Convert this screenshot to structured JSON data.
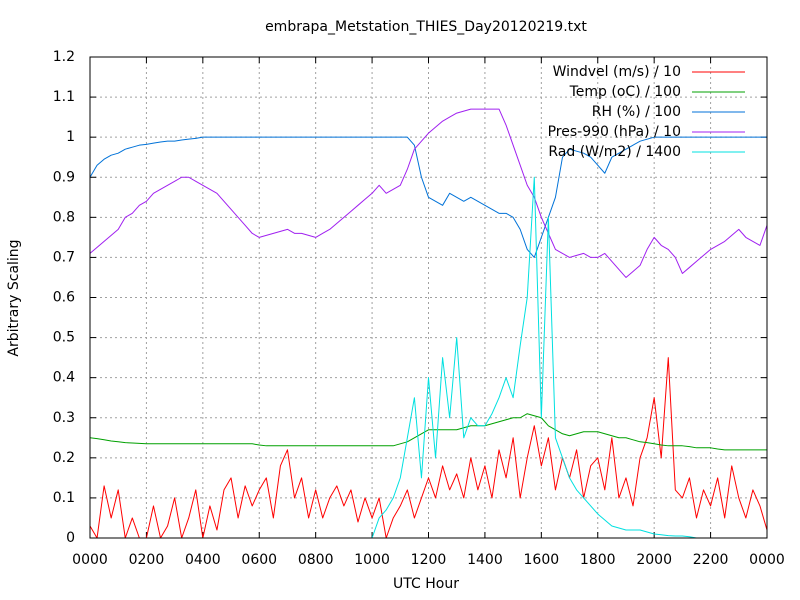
{
  "chart_data": {
    "type": "line",
    "title": "embrapa_Metstation_THIES_Day20120219.txt",
    "xlabel": "UTC Hour",
    "ylabel": "Arbitrary Scaling",
    "xlim": [
      0,
      24
    ],
    "xticks": [
      {
        "value": 0,
        "label": "0000"
      },
      {
        "value": 2,
        "label": "0200"
      },
      {
        "value": 4,
        "label": "0400"
      },
      {
        "value": 6,
        "label": "0600"
      },
      {
        "value": 8,
        "label": "0800"
      },
      {
        "value": 10,
        "label": "1000"
      },
      {
        "value": 12,
        "label": "1200"
      },
      {
        "value": 14,
        "label": "1400"
      },
      {
        "value": 16,
        "label": "1600"
      },
      {
        "value": 18,
        "label": "1800"
      },
      {
        "value": 20,
        "label": "2000"
      },
      {
        "value": 22,
        "label": "2200"
      },
      {
        "value": 24,
        "label": "0000"
      }
    ],
    "ylim": [
      0,
      1.2
    ],
    "yticks": [
      0,
      0.1,
      0.2,
      0.3,
      0.4,
      0.5,
      0.6,
      0.7,
      0.8,
      0.9,
      1,
      1.1,
      1.2
    ],
    "grid": true,
    "legend": "top-right",
    "x": [
      0,
      0.25,
      0.5,
      0.75,
      1,
      1.25,
      1.5,
      1.75,
      2,
      2.25,
      2.5,
      2.75,
      3,
      3.25,
      3.5,
      3.75,
      4,
      4.25,
      4.5,
      4.75,
      5,
      5.25,
      5.5,
      5.75,
      6,
      6.25,
      6.5,
      6.75,
      7,
      7.25,
      7.5,
      7.75,
      8,
      8.25,
      8.5,
      8.75,
      9,
      9.25,
      9.5,
      9.75,
      10,
      10.25,
      10.5,
      10.75,
      11,
      11.25,
      11.5,
      11.75,
      12,
      12.25,
      12.5,
      12.75,
      13,
      13.25,
      13.5,
      13.75,
      14,
      14.25,
      14.5,
      14.75,
      15,
      15.25,
      15.5,
      15.75,
      16,
      16.25,
      16.5,
      16.75,
      17,
      17.25,
      17.5,
      17.75,
      18,
      18.25,
      18.5,
      18.75,
      19,
      19.25,
      19.5,
      19.75,
      20,
      20.25,
      20.5,
      20.75,
      21,
      21.25,
      21.5,
      21.75,
      22,
      22.25,
      22.5,
      22.75,
      23,
      23.25,
      23.5,
      23.75,
      24
    ],
    "series": [
      {
        "name": "Windvel (m/s) / 10",
        "color": "#ff0000",
        "values": [
          0.03,
          0,
          0.13,
          0.05,
          0.12,
          0,
          0.05,
          0,
          0,
          0.08,
          0,
          0.03,
          0.1,
          0,
          0.05,
          0.12,
          0,
          0.08,
          0.02,
          0.12,
          0.15,
          0.05,
          0.13,
          0.08,
          0.12,
          0.15,
          0.05,
          0.18,
          0.22,
          0.1,
          0.15,
          0.05,
          0.12,
          0.05,
          0.1,
          0.13,
          0.08,
          0.12,
          0.04,
          0.1,
          0.05,
          0.1,
          0,
          0.05,
          0.08,
          0.12,
          0.05,
          0.1,
          0.15,
          0.1,
          0.18,
          0.12,
          0.16,
          0.1,
          0.2,
          0.12,
          0.18,
          0.1,
          0.22,
          0.15,
          0.25,
          0.1,
          0.2,
          0.28,
          0.18,
          0.25,
          0.12,
          0.2,
          0.15,
          0.22,
          0.1,
          0.18,
          0.2,
          0.12,
          0.25,
          0.1,
          0.15,
          0.08,
          0.2,
          0.25,
          0.35,
          0.2,
          0.45,
          0.12,
          0.1,
          0.15,
          0.05,
          0.12,
          0.08,
          0.15,
          0.05,
          0.18,
          0.1,
          0.05,
          0.12,
          0.08,
          0.02
        ]
      },
      {
        "name": "Temp (oC) / 100",
        "color": "#00a000",
        "values": [
          0.25,
          0.248,
          0.245,
          0.242,
          0.24,
          0.238,
          0.237,
          0.236,
          0.235,
          0.235,
          0.235,
          0.235,
          0.235,
          0.235,
          0.235,
          0.235,
          0.235,
          0.235,
          0.235,
          0.235,
          0.235,
          0.235,
          0.235,
          0.235,
          0.232,
          0.23,
          0.23,
          0.23,
          0.23,
          0.23,
          0.23,
          0.23,
          0.23,
          0.23,
          0.23,
          0.23,
          0.23,
          0.23,
          0.23,
          0.23,
          0.23,
          0.23,
          0.23,
          0.23,
          0.235,
          0.24,
          0.25,
          0.26,
          0.27,
          0.27,
          0.27,
          0.27,
          0.27,
          0.275,
          0.28,
          0.28,
          0.28,
          0.285,
          0.29,
          0.295,
          0.3,
          0.3,
          0.31,
          0.305,
          0.3,
          0.28,
          0.27,
          0.26,
          0.255,
          0.26,
          0.265,
          0.265,
          0.265,
          0.26,
          0.255,
          0.25,
          0.25,
          0.245,
          0.24,
          0.238,
          0.235,
          0.232,
          0.23,
          0.23,
          0.23,
          0.228,
          0.225,
          0.225,
          0.225,
          0.222,
          0.22,
          0.22,
          0.22,
          0.22,
          0.22,
          0.22,
          0.22
        ]
      },
      {
        "name": "RH (%) / 100",
        "color": "#0072d8",
        "values": [
          0.9,
          0.93,
          0.945,
          0.955,
          0.96,
          0.97,
          0.975,
          0.98,
          0.982,
          0.985,
          0.988,
          0.99,
          0.99,
          0.993,
          0.995,
          0.997,
          1,
          1,
          1,
          1,
          1,
          1,
          1,
          1,
          1,
          1,
          1,
          1,
          1,
          1,
          1,
          1,
          1,
          1,
          1,
          1,
          1,
          1,
          1,
          1,
          1,
          1,
          1,
          1,
          1,
          1,
          0.98,
          0.9,
          0.85,
          0.84,
          0.83,
          0.86,
          0.85,
          0.84,
          0.85,
          0.84,
          0.83,
          0.82,
          0.81,
          0.81,
          0.8,
          0.77,
          0.72,
          0.7,
          0.75,
          0.8,
          0.85,
          0.95,
          0.97,
          0.965,
          0.96,
          0.95,
          0.93,
          0.91,
          0.95,
          0.96,
          0.97,
          0.98,
          0.99,
          0.995,
          1,
          1,
          1,
          1,
          1,
          1,
          1,
          1,
          1,
          1,
          1,
          1,
          1,
          1,
          1,
          1,
          1
        ]
      },
      {
        "name": "Pres-990 (hPa) / 10",
        "color": "#a020f0",
        "values": [
          0.71,
          0.725,
          0.74,
          0.755,
          0.77,
          0.8,
          0.81,
          0.83,
          0.84,
          0.86,
          0.87,
          0.88,
          0.89,
          0.9,
          0.9,
          0.89,
          0.88,
          0.87,
          0.86,
          0.84,
          0.82,
          0.8,
          0.78,
          0.76,
          0.75,
          0.755,
          0.76,
          0.765,
          0.77,
          0.76,
          0.76,
          0.755,
          0.75,
          0.76,
          0.77,
          0.785,
          0.8,
          0.815,
          0.83,
          0.845,
          0.86,
          0.88,
          0.86,
          0.87,
          0.88,
          0.92,
          0.97,
          0.99,
          1.01,
          1.025,
          1.04,
          1.05,
          1.06,
          1.065,
          1.07,
          1.07,
          1.07,
          1.07,
          1.07,
          1.03,
          0.98,
          0.93,
          0.88,
          0.85,
          0.8,
          0.76,
          0.72,
          0.71,
          0.7,
          0.705,
          0.71,
          0.7,
          0.7,
          0.71,
          0.69,
          0.67,
          0.65,
          0.665,
          0.68,
          0.72,
          0.75,
          0.73,
          0.72,
          0.7,
          0.66,
          0.675,
          0.69,
          0.705,
          0.72,
          0.73,
          0.74,
          0.755,
          0.77,
          0.75,
          0.74,
          0.73,
          0.78
        ]
      },
      {
        "name": "Rad (W/m2) / 1400",
        "color": "#00e0e0",
        "values": [
          0,
          0,
          0,
          0,
          0,
          0,
          0,
          0,
          0,
          0,
          0,
          0,
          0,
          0,
          0,
          0,
          0,
          0,
          0,
          0,
          0,
          0,
          0,
          0,
          0,
          0,
          0,
          0,
          0,
          0,
          0,
          0,
          0,
          0,
          0,
          0,
          0,
          0,
          0,
          0,
          0,
          0.05,
          0.07,
          0.1,
          0.15,
          0.25,
          0.35,
          0.15,
          0.4,
          0.2,
          0.45,
          0.3,
          0.5,
          0.25,
          0.3,
          0.28,
          0.28,
          0.31,
          0.35,
          0.4,
          0.35,
          0.48,
          0.6,
          0.9,
          0.3,
          0.8,
          0.25,
          0.2,
          0.15,
          0.12,
          0.1,
          0.08,
          0.06,
          0.045,
          0.03,
          0.025,
          0.02,
          0.02,
          0.02,
          0.015,
          0.01,
          0.008,
          0.006,
          0.005,
          0.005,
          0.003,
          0,
          0,
          0,
          0,
          0,
          0,
          0,
          0,
          0,
          0,
          0
        ]
      }
    ]
  }
}
